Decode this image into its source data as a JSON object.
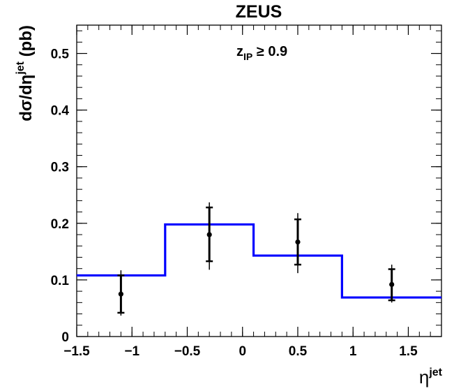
{
  "chart_data": {
    "type": "scatter",
    "title": "ZEUS",
    "xlabel_main": "η",
    "xlabel_sup": "jet",
    "ylabel_pre": "dσ/dη",
    "ylabel_sup": "jet",
    "ylabel_unit": " (pb)",
    "annotation_main": "z",
    "annotation_sub": "IP",
    "annotation_rest": " ≥ 0.9",
    "xlim": [
      -1.5,
      1.8
    ],
    "ylim": [
      0,
      0.55
    ],
    "x_ticks": [
      -1.5,
      -1,
      -0.5,
      0,
      0.5,
      1,
      1.5
    ],
    "x_tick_labels": [
      "−1.5",
      "−1",
      "−0.5",
      "0",
      "0.5",
      "1",
      "1.5"
    ],
    "y_ticks": [
      0,
      0.1,
      0.2,
      0.3,
      0.4,
      0.5
    ],
    "y_tick_labels": [
      "0",
      "0.1",
      "0.2",
      "0.3",
      "0.4",
      "0.5"
    ],
    "points": [
      {
        "x": -1.1,
        "y": 0.075,
        "stat_lo": 0.042,
        "stat_hi": 0.108,
        "tot_lo": 0.037,
        "tot_hi": 0.117
      },
      {
        "x": -0.3,
        "y": 0.18,
        "stat_lo": 0.133,
        "stat_hi": 0.228,
        "tot_lo": 0.118,
        "tot_hi": 0.237
      },
      {
        "x": 0.5,
        "y": 0.167,
        "stat_lo": 0.127,
        "stat_hi": 0.207,
        "tot_lo": 0.112,
        "tot_hi": 0.218
      },
      {
        "x": 1.35,
        "y": 0.092,
        "stat_lo": 0.064,
        "stat_hi": 0.119,
        "tot_lo": 0.06,
        "tot_hi": 0.127
      }
    ],
    "histogram": {
      "edges": [
        -1.5,
        -0.7,
        0.1,
        0.9,
        1.8
      ],
      "values": [
        0.108,
        0.198,
        0.143,
        0.069
      ]
    },
    "colors": {
      "points": "#000000",
      "histogram": "#0000ff"
    }
  }
}
